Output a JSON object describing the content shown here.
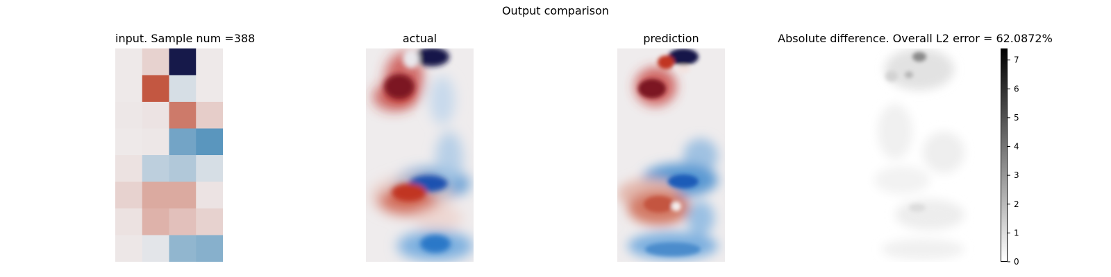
{
  "figure": {
    "suptitle": "Output comparison"
  },
  "panels": [
    {
      "id": "input",
      "title": "input. Sample num =388"
    },
    {
      "id": "actual",
      "title": "actual"
    },
    {
      "id": "prediction",
      "title": "prediction"
    },
    {
      "id": "difference",
      "title": "Absolute difference. Overall L2 error = 62.0872%"
    }
  ],
  "colorbar": {
    "ticks": [
      "0",
      "1",
      "2",
      "3",
      "4",
      "5",
      "6",
      "7"
    ],
    "range": [
      0,
      7.4
    ],
    "colormap": "grayscale (white=0, black=max)"
  },
  "chart_data": {
    "type": "heatmap",
    "colormap": "diverging red-white-blue",
    "colors": {
      "red": "#bb3d23",
      "blue": "#1560b6",
      "navy": "#16194a",
      "neutral": "#efeced"
    },
    "input_grid": [
      [
        0.02,
        0.15,
        -1.0,
        0.02
      ],
      [
        0.02,
        0.85,
        -0.1,
        0.02
      ],
      [
        0.03,
        0.05,
        0.65,
        0.18
      ],
      [
        0.02,
        0.03,
        -0.5,
        -0.6
      ],
      [
        0.06,
        -0.2,
        -0.25,
        -0.1
      ],
      [
        0.15,
        0.38,
        0.38,
        0.05
      ],
      [
        0.06,
        0.33,
        0.25,
        0.15
      ],
      [
        0.03,
        -0.05,
        -0.38,
        -0.42
      ]
    ]
  }
}
